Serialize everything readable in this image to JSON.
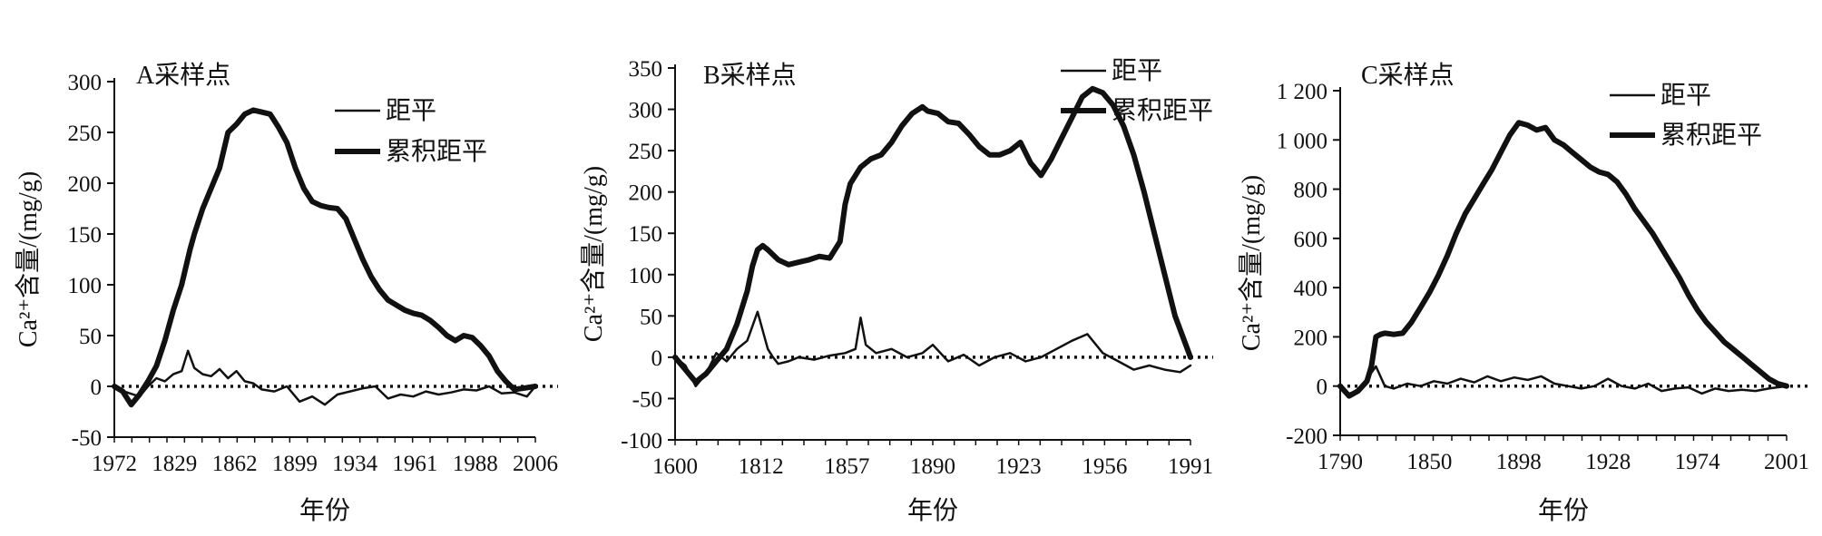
{
  "chart_data": [
    {
      "type": "line",
      "title": "A采样点",
      "xlabel": "年份",
      "ylabel": "Ca²⁺含量/(mg/g)",
      "x_tick_labels": [
        "1972",
        "1829",
        "1862",
        "1899",
        "1934",
        "1961",
        "1988",
        "2006"
      ],
      "y_ticks": [
        -50,
        0,
        50,
        100,
        150,
        200,
        250,
        300
      ],
      "ylim": [
        -50,
        300
      ],
      "xlim": [
        0,
        100
      ],
      "grid": false,
      "legend": "top-right",
      "reference_line": 0,
      "series": [
        {
          "name": "距平",
          "style": "thin",
          "x": [
            0,
            3,
            6,
            8,
            10,
            12,
            14,
            16,
            17.5,
            19,
            21,
            23,
            25,
            27,
            29,
            31,
            33,
            35,
            38,
            41,
            44,
            47,
            50,
            53,
            56,
            59,
            62,
            65,
            68,
            71,
            74,
            77,
            80,
            83,
            86,
            89,
            92,
            95,
            98,
            100
          ],
          "y": [
            0,
            -6,
            -10,
            0,
            8,
            5,
            12,
            15,
            35,
            18,
            12,
            10,
            17,
            8,
            15,
            5,
            3,
            -3,
            -5,
            0,
            -15,
            -10,
            -18,
            -8,
            -5,
            -2,
            0,
            -12,
            -8,
            -10,
            -5,
            -8,
            -6,
            -3,
            -4,
            0,
            -7,
            -6,
            -10,
            0
          ]
        },
        {
          "name": "累积距平",
          "style": "thick",
          "x": [
            0,
            2,
            4,
            6,
            8,
            10,
            12,
            14,
            16,
            18,
            19,
            21,
            23,
            25,
            27,
            29,
            31,
            33,
            35,
            37,
            39,
            41,
            43,
            45,
            47,
            49,
            51,
            53,
            55,
            57,
            59,
            61,
            63,
            65,
            67,
            69,
            71,
            73,
            75,
            77,
            79,
            81,
            83,
            85,
            87,
            89,
            91,
            93,
            95,
            97,
            100
          ],
          "y": [
            0,
            -5,
            -18,
            -8,
            5,
            20,
            45,
            75,
            100,
            135,
            150,
            175,
            195,
            215,
            250,
            258,
            268,
            272,
            270,
            268,
            255,
            240,
            215,
            195,
            182,
            178,
            176,
            175,
            165,
            145,
            125,
            108,
            95,
            85,
            80,
            75,
            72,
            70,
            65,
            58,
            50,
            45,
            50,
            48,
            40,
            30,
            15,
            5,
            -3,
            -2,
            0
          ]
        }
      ]
    },
    {
      "type": "line",
      "title": "B采样点",
      "xlabel": "年份",
      "ylabel": "Ca²⁺含量/(mg/g)",
      "x_tick_labels": [
        "1600",
        "1812",
        "1857",
        "1890",
        "1923",
        "1956",
        "1991"
      ],
      "y_ticks": [
        -100,
        -50,
        0,
        50,
        100,
        150,
        200,
        250,
        300,
        350
      ],
      "ylim": [
        -100,
        350
      ],
      "xlim": [
        0,
        100
      ],
      "grid": false,
      "legend": "top-right",
      "reference_line": 0,
      "series": [
        {
          "name": "距平",
          "style": "thin",
          "x": [
            0,
            2,
            4,
            6,
            8,
            10,
            12,
            14,
            16,
            18,
            19,
            20,
            22,
            24,
            27,
            30,
            33,
            35,
            36,
            37,
            39,
            42,
            45,
            48,
            50,
            53,
            56,
            59,
            62,
            65,
            68,
            71,
            74,
            77,
            80,
            83,
            86,
            89,
            92,
            95,
            98,
            100
          ],
          "y": [
            0,
            -10,
            -35,
            -20,
            5,
            -5,
            10,
            20,
            55,
            10,
            0,
            -8,
            -5,
            0,
            -3,
            2,
            5,
            10,
            48,
            15,
            5,
            10,
            0,
            5,
            15,
            -5,
            3,
            -10,
            0,
            5,
            -5,
            0,
            10,
            20,
            28,
            5,
            -5,
            -15,
            -10,
            -15,
            -18,
            -10
          ]
        },
        {
          "name": "累积距平",
          "style": "thick",
          "x": [
            0,
            2,
            4,
            6,
            8,
            10,
            12,
            14,
            15,
            16,
            17,
            18,
            20,
            22,
            24,
            26,
            28,
            30,
            32,
            33,
            34,
            36,
            38,
            40,
            42,
            44,
            46,
            48,
            49,
            51,
            53,
            55,
            57,
            59,
            61,
            63,
            65,
            67,
            69,
            71,
            73,
            75,
            77,
            79,
            81,
            83,
            85,
            87,
            89,
            91,
            93,
            95,
            97,
            100
          ],
          "y": [
            0,
            -15,
            -30,
            -20,
            -5,
            10,
            40,
            80,
            110,
            130,
            135,
            130,
            118,
            112,
            115,
            118,
            122,
            120,
            140,
            185,
            210,
            230,
            240,
            245,
            260,
            280,
            295,
            303,
            298,
            295,
            285,
            283,
            270,
            255,
            245,
            245,
            250,
            260,
            235,
            220,
            240,
            265,
            290,
            315,
            325,
            320,
            305,
            280,
            245,
            200,
            150,
            100,
            50,
            0
          ]
        }
      ]
    },
    {
      "type": "line",
      "title": "C采样点",
      "xlabel": "年份",
      "ylabel": "Ca²⁺含量/(mg/g)",
      "x_tick_labels": [
        "1790",
        "1850",
        "1898",
        "1928",
        "1974",
        "2001"
      ],
      "y_ticks": [
        -200,
        0,
        200,
        400,
        600,
        800,
        1000,
        1200
      ],
      "y_tick_labels": [
        "-200",
        "0",
        "200",
        "400",
        "600",
        "800",
        "1 000",
        "1 200"
      ],
      "ylim": [
        -200,
        1200
      ],
      "xlim": [
        0,
        100
      ],
      "grid": false,
      "legend": "top-right",
      "reference_line": 0,
      "series": [
        {
          "name": "距平",
          "style": "thin",
          "x": [
            0,
            2,
            4,
            6,
            8,
            10,
            12,
            15,
            18,
            21,
            24,
            27,
            30,
            33,
            36,
            39,
            42,
            45,
            48,
            51,
            54,
            57,
            60,
            63,
            66,
            69,
            72,
            75,
            78,
            81,
            84,
            87,
            90,
            93,
            96,
            100
          ],
          "y": [
            0,
            -30,
            -20,
            30,
            80,
            0,
            -10,
            10,
            0,
            20,
            10,
            30,
            15,
            40,
            20,
            35,
            25,
            40,
            10,
            0,
            -10,
            0,
            30,
            0,
            -10,
            10,
            -20,
            -10,
            -5,
            -30,
            -10,
            -20,
            -15,
            -20,
            -10,
            0
          ]
        },
        {
          "name": "累积距平",
          "style": "thick",
          "x": [
            0,
            2,
            4,
            6,
            7,
            8,
            9,
            10,
            12,
            14,
            16,
            18,
            20,
            22,
            24,
            26,
            28,
            30,
            32,
            34,
            36,
            38,
            40,
            42,
            44,
            46,
            48,
            50,
            52,
            54,
            56,
            58,
            60,
            62,
            64,
            66,
            68,
            70,
            72,
            74,
            76,
            78,
            80,
            82,
            84,
            86,
            88,
            90,
            92,
            94,
            96,
            98,
            100
          ],
          "y": [
            0,
            -40,
            -20,
            20,
            80,
            200,
            210,
            215,
            210,
            215,
            260,
            320,
            380,
            450,
            530,
            620,
            700,
            760,
            820,
            880,
            950,
            1020,
            1070,
            1060,
            1040,
            1050,
            1000,
            980,
            950,
            920,
            890,
            870,
            860,
            830,
            780,
            720,
            670,
            620,
            560,
            500,
            440,
            370,
            310,
            260,
            220,
            180,
            150,
            120,
            90,
            60,
            30,
            10,
            0
          ]
        }
      ]
    }
  ]
}
